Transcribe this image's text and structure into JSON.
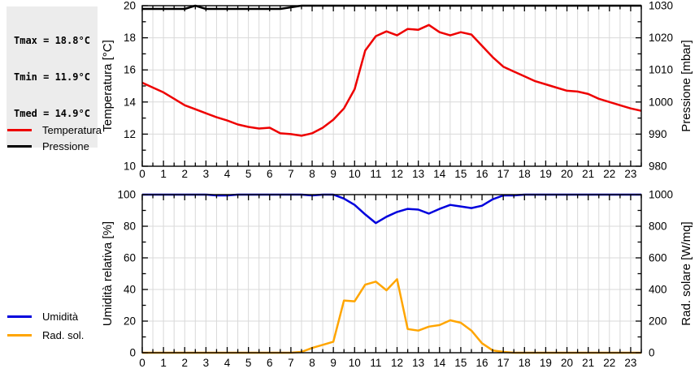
{
  "stats_box": {
    "lines": [
      "Tmax = 18.8°C",
      "Tmin = 11.9°C",
      "Tmed = 14.9°C"
    ],
    "bg_color": "#ececec"
  },
  "colors": {
    "temperature": "#ee0000",
    "pressure": "#000000",
    "humidity": "#0000dd",
    "radiation": "#ffa500",
    "grid": "#d9d9d9",
    "frame": "#000000",
    "text": "#000000"
  },
  "chart_data": [
    {
      "type": "line",
      "title": "",
      "x_range": [
        0,
        23.5
      ],
      "x_major_tick_step": 1,
      "x_minor_tick_step": 0.5,
      "x_tick_labels": [
        "0",
        "1",
        "2",
        "3",
        "4",
        "5",
        "6",
        "7",
        "8",
        "9",
        "10",
        "11",
        "12",
        "13",
        "14",
        "15",
        "16",
        "17",
        "18",
        "19",
        "20",
        "21",
        "22",
        "23"
      ],
      "grid": true,
      "legend_position": "left",
      "axes": {
        "left": {
          "label": "Temperatura [°C]",
          "range": [
            10,
            20
          ],
          "major_step": 2,
          "minor_step": 1,
          "tick_labels": [
            "10",
            "12",
            "14",
            "16",
            "18",
            "20"
          ]
        },
        "right": {
          "label": "Pressione [mbar]",
          "range": [
            980,
            1030
          ],
          "major_step": 10,
          "minor_step": 5,
          "tick_labels": [
            "980",
            "990",
            "1000",
            "1010",
            "1020",
            "1030"
          ]
        }
      },
      "x": [
        0,
        0.5,
        1,
        1.5,
        2,
        2.5,
        3,
        3.5,
        4,
        4.5,
        5,
        5.5,
        6,
        6.5,
        7,
        7.5,
        8,
        8.5,
        9,
        9.5,
        10,
        10.5,
        11,
        11.5,
        12,
        12.5,
        13,
        13.5,
        14,
        14.5,
        15,
        15.5,
        16,
        16.5,
        17,
        17.5,
        18,
        18.5,
        19,
        19.5,
        20,
        20.5,
        21,
        21.5,
        22,
        22.5,
        23,
        23.5
      ],
      "series": [
        {
          "name": "Temperatura",
          "axis": "left",
          "color_key": "temperature",
          "values": [
            15.2,
            14.9,
            14.6,
            14.2,
            13.8,
            13.55,
            13.3,
            13.05,
            12.85,
            12.6,
            12.45,
            12.35,
            12.4,
            12.05,
            12.0,
            11.9,
            12.05,
            12.4,
            12.9,
            13.6,
            14.8,
            17.2,
            18.1,
            18.4,
            18.15,
            18.55,
            18.5,
            18.8,
            18.35,
            18.15,
            18.35,
            18.2,
            17.5,
            16.8,
            16.2,
            15.9,
            15.6,
            15.3,
            15.1,
            14.9,
            14.7,
            14.65,
            14.5,
            14.2,
            14.0,
            13.8,
            13.6,
            13.45
          ]
        },
        {
          "name": "Pressione",
          "axis": "right",
          "color_key": "pressure",
          "values": [
            1029,
            1029,
            1029,
            1029,
            1029,
            1030,
            1029,
            1029,
            1029,
            1029,
            1029,
            1029,
            1029,
            1029,
            1029.5,
            1030,
            1030,
            1030,
            1030,
            1030,
            1030,
            1030,
            1030,
            1030,
            1030,
            1030,
            1030,
            1030,
            1030,
            1030,
            1030,
            1030,
            1030,
            1030,
            1030,
            1030,
            1030,
            1030,
            1030,
            1030,
            1030,
            1030,
            1030,
            1030,
            1030,
            1030,
            1030,
            1030
          ]
        }
      ]
    },
    {
      "type": "line",
      "title": "",
      "x_range": [
        0,
        23.5
      ],
      "x_major_tick_step": 1,
      "x_minor_tick_step": 0.5,
      "x_tick_labels": [
        "0",
        "1",
        "2",
        "3",
        "4",
        "5",
        "6",
        "7",
        "8",
        "9",
        "10",
        "11",
        "12",
        "13",
        "14",
        "15",
        "16",
        "17",
        "18",
        "19",
        "20",
        "21",
        "22",
        "23"
      ],
      "grid": true,
      "legend_position": "left",
      "axes": {
        "left": {
          "label": "Umidità relativa [%]",
          "range": [
            0,
            100
          ],
          "major_step": 20,
          "minor_step": 10,
          "tick_labels": [
            "0",
            "20",
            "40",
            "60",
            "80",
            "100"
          ]
        },
        "right": {
          "label": "Rad. solare [W/mq]",
          "range": [
            0,
            1000
          ],
          "major_step": 200,
          "minor_step": 100,
          "tick_labels": [
            "0",
            "200",
            "400",
            "600",
            "800",
            "1000"
          ]
        }
      },
      "x": [
        0,
        0.5,
        1,
        1.5,
        2,
        2.5,
        3,
        3.5,
        4,
        4.5,
        5,
        5.5,
        6,
        6.5,
        7,
        7.5,
        8,
        8.5,
        9,
        9.5,
        10,
        10.5,
        11,
        11.5,
        12,
        12.5,
        13,
        13.5,
        14,
        14.5,
        15,
        15.5,
        16,
        16.5,
        17,
        17.5,
        18,
        18.5,
        19,
        19.5,
        20,
        20.5,
        21,
        21.5,
        22,
        22.5,
        23,
        23.5
      ],
      "series": [
        {
          "name": "Umidità",
          "axis": "left",
          "color_key": "humidity",
          "values": [
            100,
            100,
            100,
            100,
            100,
            100,
            100,
            99.5,
            99.5,
            100,
            100,
            100,
            100,
            100,
            100,
            100,
            99.5,
            100,
            100,
            97.5,
            93.5,
            87.5,
            82,
            86,
            89,
            91,
            90.5,
            88,
            91,
            93.5,
            92.5,
            91.5,
            93,
            97,
            99.5,
            99.5,
            100,
            100,
            100,
            100,
            100,
            100,
            100,
            100,
            100,
            100,
            100,
            100
          ]
        },
        {
          "name": "Rad. sol.",
          "axis": "right",
          "color_key": "radiation",
          "values": [
            0,
            0,
            0,
            0,
            0,
            0,
            0,
            0,
            0,
            0,
            0,
            0,
            0,
            0,
            0,
            5,
            30,
            50,
            70,
            330,
            325,
            430,
            450,
            395,
            465,
            150,
            140,
            165,
            175,
            205,
            190,
            140,
            60,
            15,
            5,
            0,
            0,
            0,
            0,
            0,
            0,
            0,
            0,
            0,
            0,
            0,
            0,
            0
          ]
        }
      ]
    }
  ]
}
